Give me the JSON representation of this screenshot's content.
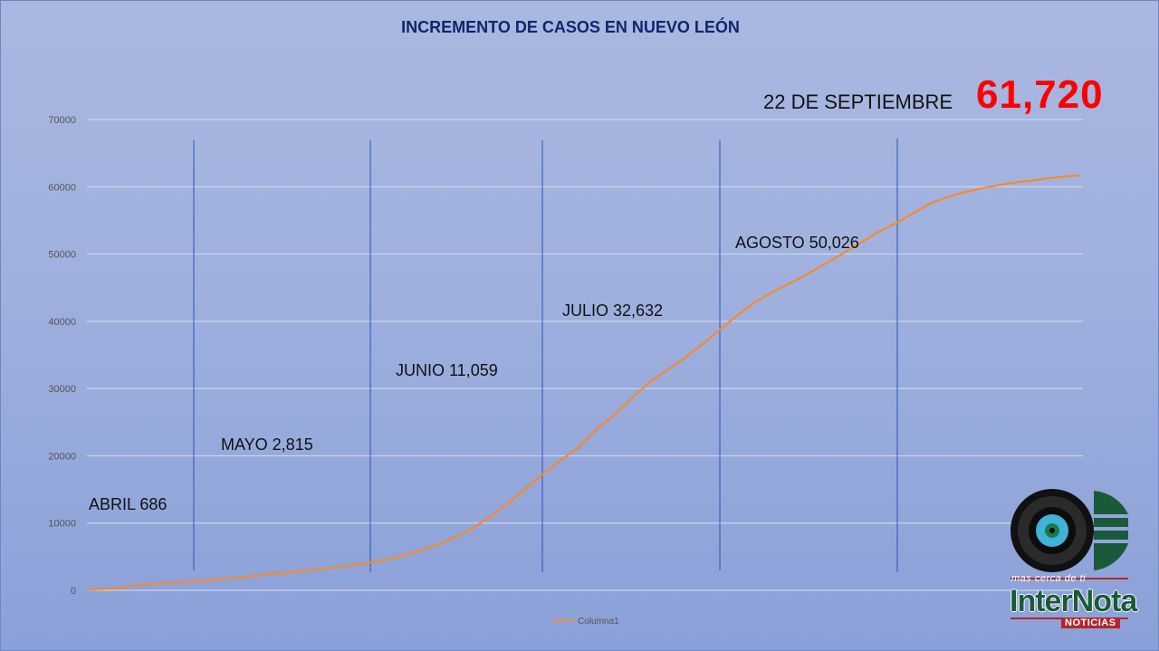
{
  "chart_data": {
    "type": "line",
    "title": "INCREMENTO DE CASOS EN NUEVO LEÓN",
    "xlabel": "",
    "ylabel": "",
    "ylim": [
      0,
      70000
    ],
    "yticks": [
      0,
      10000,
      20000,
      30000,
      40000,
      50000,
      60000,
      70000
    ],
    "grid": true,
    "legend_position": "bottom",
    "x": [
      0,
      2,
      4,
      6,
      8,
      10,
      14,
      18,
      22,
      26,
      30,
      32,
      36,
      40,
      44,
      48,
      52,
      56,
      60,
      64,
      68,
      72,
      76,
      80,
      84,
      88,
      92,
      96,
      100,
      104,
      108,
      112,
      116,
      120,
      124,
      128,
      132,
      136,
      140,
      144,
      148,
      152,
      156,
      160,
      164,
      168,
      172,
      176,
      180,
      184,
      188,
      192,
      196,
      200,
      204,
      208,
      212,
      216,
      218,
      220,
      222,
      224,
      226
    ],
    "series": [
      {
        "name": "Columna1",
        "values": [
          100,
          150,
          200,
          300,
          350,
          686,
          900,
          1100,
          1250,
          1400,
          1650,
          1750,
          2000,
          2300,
          2550,
          2815,
          3100,
          3400,
          3700,
          4050,
          4550,
          5200,
          5900,
          6800,
          7900,
          9300,
          11059,
          13000,
          15200,
          17400,
          19400,
          21300,
          23900,
          26000,
          28500,
          30900,
          32632,
          34500,
          36500,
          38700,
          40800,
          42800,
          44300,
          45600,
          47000,
          48500,
          50026,
          51600,
          53200,
          54500,
          56000,
          57500,
          58500,
          59200,
          59800,
          60300,
          60700,
          61000,
          61200,
          61350,
          61500,
          61620,
          61720
        ]
      }
    ],
    "line_color": "#f28b30",
    "axis_text_color": "#555555",
    "grid_color": "#d6deef",
    "month_divider_color": "#2a54b8",
    "annotations": [
      {
        "label": "ABRIL 686"
      },
      {
        "label": "MAYO 2,815"
      },
      {
        "label": "JUNIO 11,059"
      },
      {
        "label": "JULIO 32,632"
      },
      {
        "label": "AGOSTO 50,026"
      }
    ],
    "date_label": "22 DE SEPTIEMBRE",
    "total": "61,720"
  },
  "logo": {
    "tagline": "mas cerca de ti",
    "brand": "InterNota",
    "sub": "NOTICIAS",
    "colors": {
      "green": "#1a5a3a",
      "red": "#b3262b",
      "lens": "#3fb2d8"
    }
  }
}
